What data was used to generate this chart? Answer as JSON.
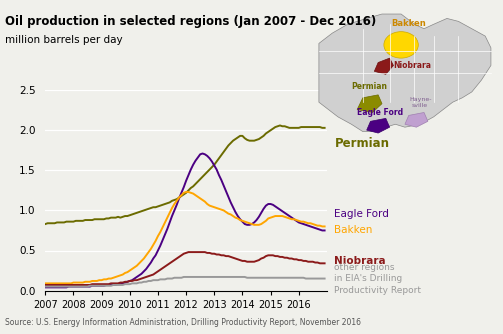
{
  "title": "Oil production in selected regions (Jan 2007 - Dec 2016)",
  "subtitle": "million barrels per day",
  "source_text": "Source: U.S. Energy Information Administration, Drilling Productivity Report, November 2016",
  "ylim": [
    0.0,
    2.5
  ],
  "yticks": [
    0.0,
    0.5,
    1.0,
    1.5,
    2.0,
    2.5
  ],
  "xtick_years": [
    2007,
    2008,
    2009,
    2010,
    2011,
    2012,
    2013,
    2014,
    2015,
    2016
  ],
  "bg_color": "#f0f0eb",
  "series": {
    "Permian": {
      "color": "#6b6b00"
    },
    "Eagle Ford": {
      "color": "#4b0082"
    },
    "Bakken": {
      "color": "#ffa500"
    },
    "Niobrara": {
      "color": "#8b1a1a"
    },
    "other": {
      "color": "#999999"
    }
  },
  "permian_data": [
    0.83,
    0.84,
    0.84,
    0.84,
    0.84,
    0.85,
    0.85,
    0.85,
    0.85,
    0.86,
    0.86,
    0.86,
    0.86,
    0.87,
    0.87,
    0.87,
    0.87,
    0.88,
    0.88,
    0.88,
    0.88,
    0.89,
    0.89,
    0.89,
    0.89,
    0.89,
    0.9,
    0.9,
    0.91,
    0.91,
    0.91,
    0.92,
    0.91,
    0.92,
    0.93,
    0.93,
    0.94,
    0.95,
    0.96,
    0.97,
    0.98,
    0.99,
    1.0,
    1.01,
    1.02,
    1.03,
    1.04,
    1.04,
    1.05,
    1.06,
    1.07,
    1.08,
    1.09,
    1.1,
    1.12,
    1.13,
    1.14,
    1.16,
    1.18,
    1.2,
    1.22,
    1.25,
    1.28,
    1.3,
    1.33,
    1.36,
    1.39,
    1.42,
    1.45,
    1.48,
    1.51,
    1.54,
    1.57,
    1.61,
    1.65,
    1.69,
    1.73,
    1.77,
    1.81,
    1.84,
    1.87,
    1.89,
    1.91,
    1.93,
    1.93,
    1.9,
    1.88,
    1.87,
    1.87,
    1.87,
    1.88,
    1.89,
    1.91,
    1.93,
    1.96,
    1.98,
    2.0,
    2.02,
    2.04,
    2.05,
    2.06,
    2.05,
    2.05,
    2.04,
    2.03,
    2.03,
    2.03,
    2.03,
    2.03,
    2.04,
    2.04,
    2.04,
    2.04,
    2.04,
    2.04,
    2.04,
    2.04,
    2.04,
    2.03,
    2.03
  ],
  "eagle_ford_data": [
    0.04,
    0.04,
    0.04,
    0.04,
    0.04,
    0.04,
    0.04,
    0.04,
    0.04,
    0.04,
    0.05,
    0.05,
    0.05,
    0.05,
    0.05,
    0.05,
    0.05,
    0.05,
    0.05,
    0.05,
    0.06,
    0.06,
    0.06,
    0.06,
    0.06,
    0.06,
    0.07,
    0.07,
    0.07,
    0.07,
    0.07,
    0.08,
    0.08,
    0.09,
    0.1,
    0.11,
    0.12,
    0.13,
    0.15,
    0.17,
    0.19,
    0.21,
    0.24,
    0.27,
    0.31,
    0.35,
    0.4,
    0.44,
    0.5,
    0.56,
    0.63,
    0.7,
    0.77,
    0.85,
    0.93,
    1.0,
    1.07,
    1.15,
    1.22,
    1.29,
    1.37,
    1.44,
    1.51,
    1.57,
    1.62,
    1.66,
    1.7,
    1.71,
    1.7,
    1.68,
    1.65,
    1.61,
    1.56,
    1.51,
    1.44,
    1.38,
    1.31,
    1.24,
    1.17,
    1.1,
    1.04,
    0.98,
    0.93,
    0.89,
    0.86,
    0.83,
    0.82,
    0.82,
    0.83,
    0.85,
    0.88,
    0.92,
    0.97,
    1.02,
    1.06,
    1.08,
    1.08,
    1.07,
    1.05,
    1.03,
    1.01,
    0.99,
    0.97,
    0.95,
    0.93,
    0.91,
    0.89,
    0.87,
    0.85,
    0.84,
    0.83,
    0.82,
    0.81,
    0.8,
    0.79,
    0.78,
    0.77,
    0.76,
    0.75,
    0.75
  ],
  "bakken_data": [
    0.09,
    0.09,
    0.09,
    0.09,
    0.09,
    0.09,
    0.09,
    0.09,
    0.09,
    0.09,
    0.09,
    0.09,
    0.1,
    0.1,
    0.1,
    0.1,
    0.1,
    0.11,
    0.11,
    0.11,
    0.12,
    0.12,
    0.12,
    0.13,
    0.13,
    0.14,
    0.14,
    0.15,
    0.15,
    0.16,
    0.17,
    0.18,
    0.19,
    0.2,
    0.22,
    0.23,
    0.25,
    0.27,
    0.29,
    0.31,
    0.34,
    0.37,
    0.4,
    0.44,
    0.48,
    0.52,
    0.57,
    0.62,
    0.68,
    0.73,
    0.79,
    0.85,
    0.91,
    0.97,
    1.03,
    1.08,
    1.12,
    1.16,
    1.19,
    1.22,
    1.23,
    1.23,
    1.22,
    1.21,
    1.19,
    1.17,
    1.15,
    1.13,
    1.11,
    1.08,
    1.06,
    1.05,
    1.04,
    1.03,
    1.02,
    1.01,
    1.0,
    0.98,
    0.96,
    0.95,
    0.93,
    0.91,
    0.9,
    0.88,
    0.87,
    0.86,
    0.85,
    0.84,
    0.83,
    0.82,
    0.82,
    0.82,
    0.83,
    0.85,
    0.87,
    0.9,
    0.91,
    0.92,
    0.93,
    0.93,
    0.93,
    0.93,
    0.92,
    0.91,
    0.9,
    0.89,
    0.89,
    0.88,
    0.87,
    0.86,
    0.86,
    0.85,
    0.84,
    0.84,
    0.83,
    0.82,
    0.81,
    0.81,
    0.8,
    0.8
  ],
  "niobrara_data": [
    0.07,
    0.07,
    0.07,
    0.07,
    0.07,
    0.07,
    0.07,
    0.07,
    0.07,
    0.07,
    0.07,
    0.07,
    0.07,
    0.07,
    0.07,
    0.07,
    0.07,
    0.07,
    0.07,
    0.07,
    0.08,
    0.08,
    0.08,
    0.08,
    0.08,
    0.08,
    0.08,
    0.08,
    0.09,
    0.09,
    0.09,
    0.09,
    0.1,
    0.1,
    0.11,
    0.11,
    0.12,
    0.12,
    0.13,
    0.13,
    0.14,
    0.15,
    0.16,
    0.17,
    0.18,
    0.19,
    0.2,
    0.22,
    0.24,
    0.26,
    0.28,
    0.3,
    0.32,
    0.34,
    0.36,
    0.38,
    0.4,
    0.42,
    0.44,
    0.46,
    0.47,
    0.48,
    0.48,
    0.48,
    0.48,
    0.48,
    0.48,
    0.48,
    0.48,
    0.47,
    0.47,
    0.46,
    0.46,
    0.45,
    0.45,
    0.44,
    0.44,
    0.43,
    0.43,
    0.42,
    0.41,
    0.4,
    0.39,
    0.38,
    0.37,
    0.37,
    0.36,
    0.36,
    0.36,
    0.36,
    0.37,
    0.38,
    0.4,
    0.41,
    0.43,
    0.44,
    0.44,
    0.44,
    0.43,
    0.43,
    0.42,
    0.42,
    0.41,
    0.41,
    0.4,
    0.4,
    0.39,
    0.39,
    0.38,
    0.38,
    0.37,
    0.37,
    0.36,
    0.36,
    0.36,
    0.35,
    0.35,
    0.34,
    0.34,
    0.34
  ],
  "other_data": [
    0.05,
    0.05,
    0.05,
    0.05,
    0.05,
    0.05,
    0.05,
    0.05,
    0.05,
    0.05,
    0.05,
    0.05,
    0.05,
    0.05,
    0.05,
    0.05,
    0.05,
    0.05,
    0.05,
    0.06,
    0.06,
    0.06,
    0.06,
    0.06,
    0.06,
    0.06,
    0.06,
    0.06,
    0.06,
    0.07,
    0.07,
    0.07,
    0.07,
    0.07,
    0.08,
    0.08,
    0.08,
    0.09,
    0.09,
    0.09,
    0.1,
    0.1,
    0.11,
    0.11,
    0.12,
    0.12,
    0.13,
    0.13,
    0.13,
    0.14,
    0.14,
    0.14,
    0.15,
    0.15,
    0.15,
    0.16,
    0.16,
    0.16,
    0.16,
    0.17,
    0.17,
    0.17,
    0.17,
    0.17,
    0.17,
    0.17,
    0.17,
    0.17,
    0.17,
    0.17,
    0.17,
    0.17,
    0.17,
    0.17,
    0.17,
    0.17,
    0.17,
    0.17,
    0.17,
    0.17,
    0.17,
    0.17,
    0.17,
    0.17,
    0.17,
    0.17,
    0.16,
    0.16,
    0.16,
    0.16,
    0.16,
    0.16,
    0.16,
    0.16,
    0.16,
    0.16,
    0.16,
    0.16,
    0.16,
    0.16,
    0.16,
    0.16,
    0.16,
    0.16,
    0.16,
    0.16,
    0.16,
    0.16,
    0.16,
    0.16,
    0.16,
    0.15,
    0.15,
    0.15,
    0.15,
    0.15,
    0.15,
    0.15,
    0.15,
    0.15
  ]
}
